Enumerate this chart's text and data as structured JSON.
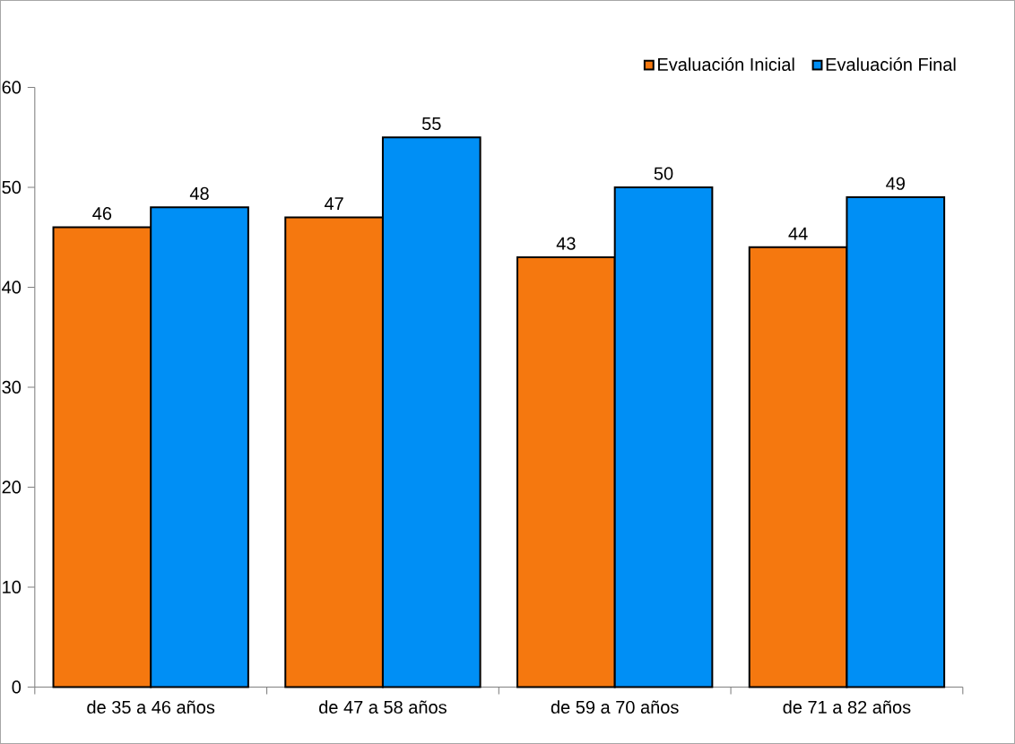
{
  "chart_data": {
    "type": "bar",
    "categories": [
      "de 35 a 46 años",
      "de 47 a 58 años",
      "de 59 a 70 años",
      "de 71 a 82 años"
    ],
    "series": [
      {
        "name": "Evaluación Inicial",
        "color": "#f5780f",
        "values": [
          46,
          47,
          43,
          44
        ]
      },
      {
        "name": "Evaluación Final",
        "color": "#008ff5",
        "values": [
          48,
          55,
          50,
          49
        ]
      }
    ],
    "ylim": [
      0,
      60
    ],
    "yticks": [
      0,
      10,
      20,
      30,
      40,
      50,
      60
    ],
    "data_labels": true,
    "legend": "top right"
  }
}
